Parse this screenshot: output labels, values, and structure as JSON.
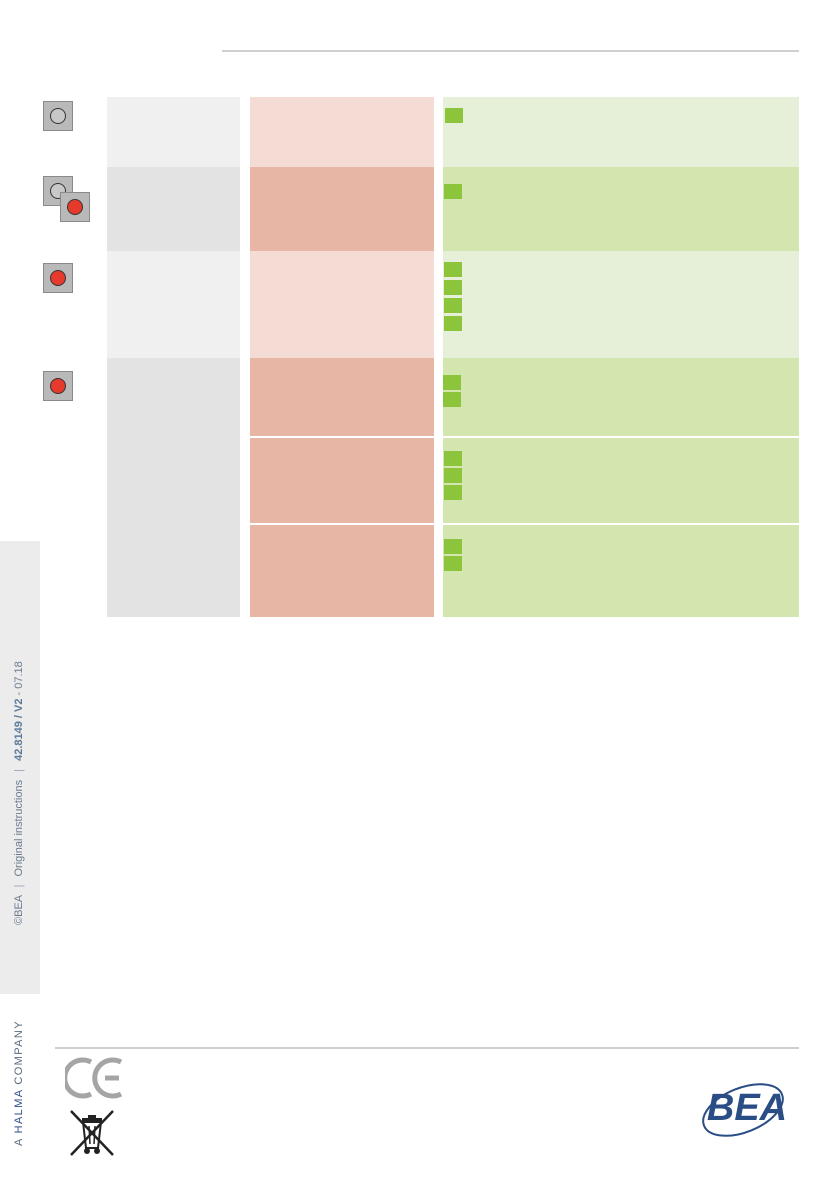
{
  "footer": {
    "copyright": "©BEA",
    "doc_type": "Original instructions",
    "doc_ref": "42.8149 / V2",
    "date": "07.18",
    "company_prefix": "A ",
    "company_name": "HALMA",
    "company_suffix": " COMPANY",
    "ce_mark": "CE",
    "logo_text": "BEA"
  },
  "colors": {
    "grey_light": "#f0f0f0",
    "grey_dark": "#e3e3e3",
    "pink_light": "#f4dbd3",
    "pink_dark": "#e8b6a5",
    "green_light": "#e6f0d8",
    "green_dark": "#d3e6af",
    "led_red": "#e63a2d",
    "marker_green": "#8cc43c",
    "brand_blue": "#2b4d86"
  },
  "table": {
    "rows": [
      {
        "led": "off",
        "solution_steps": 1
      },
      {
        "led": "off-then-red",
        "solution_steps": 1
      },
      {
        "led": "red",
        "solution_steps": 4
      },
      {
        "led": "red",
        "sub_rows": [
          2,
          3,
          2
        ]
      }
    ]
  }
}
